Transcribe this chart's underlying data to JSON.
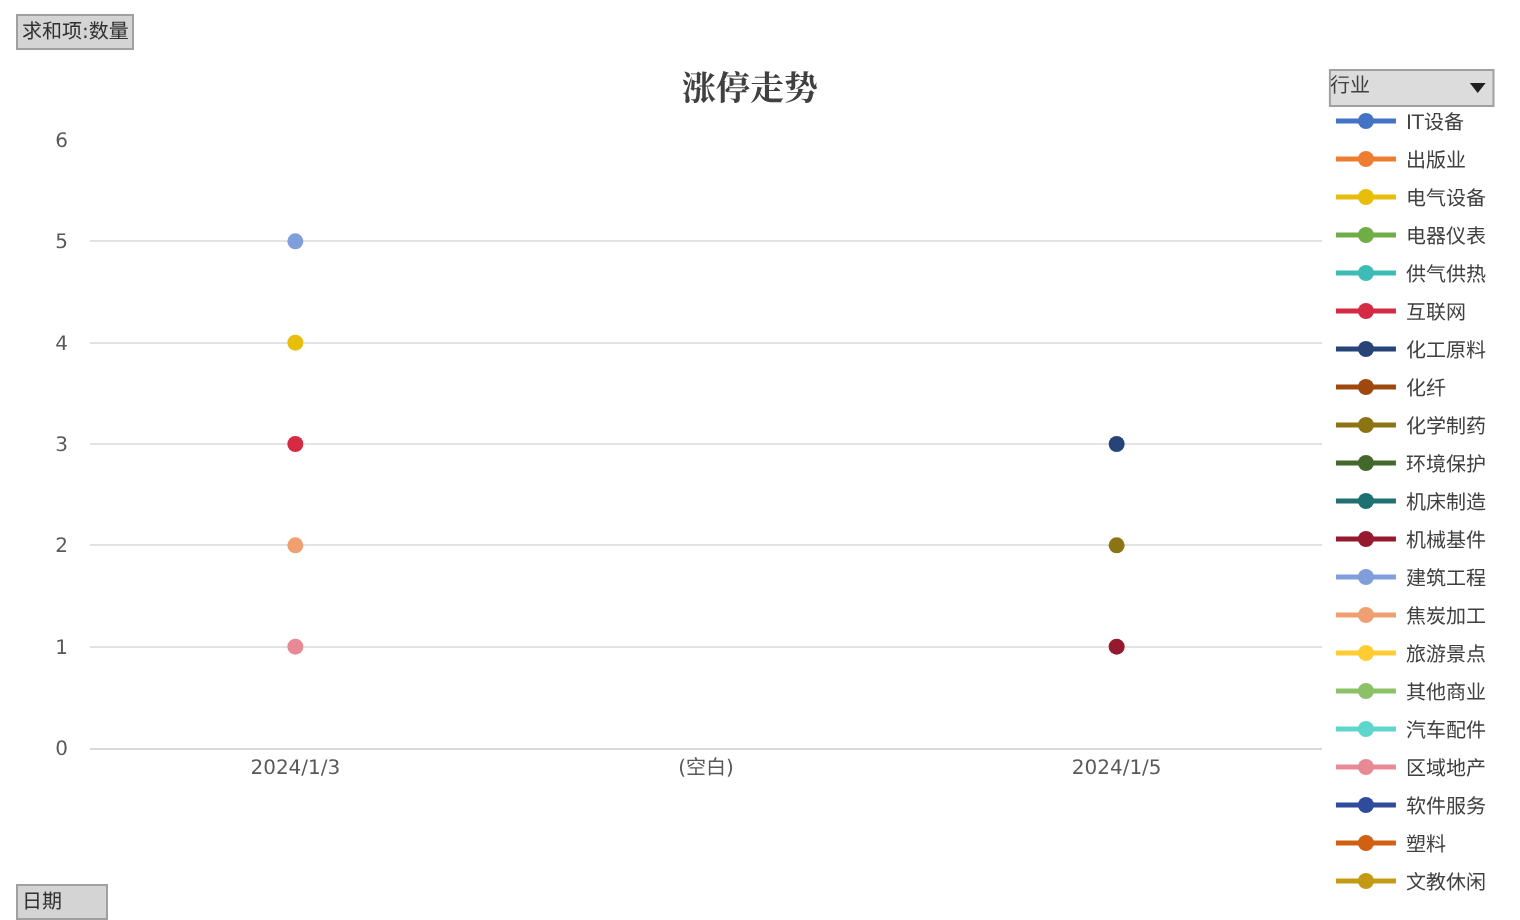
{
  "chart_data": {
    "type": "line",
    "title": "涨停走势",
    "legend_title": "行业",
    "annotations": [
      "求和项:数量",
      "日期"
    ],
    "categories": [
      "2024/1/3",
      "(空白)",
      "2024/1/5"
    ],
    "ylim": [
      0,
      6
    ],
    "yticks": [
      0,
      1,
      2,
      3,
      4,
      5,
      6
    ],
    "grid": "y",
    "legend": "right",
    "marker": "circle",
    "line_style": "solid",
    "series": [
      {
        "name": "IT设备",
        "color": "#4472c4",
        "values": [
          null,
          null,
          null
        ]
      },
      {
        "name": "出版业",
        "color": "#ed7d31",
        "values": [
          null,
          null,
          null
        ]
      },
      {
        "name": "电气设备",
        "color": "#e8be0a",
        "values": [
          4,
          null,
          null
        ]
      },
      {
        "name": "电器仪表",
        "color": "#70ad47",
        "values": [
          null,
          null,
          null
        ]
      },
      {
        "name": "供气供热",
        "color": "#3cbcb4",
        "values": [
          null,
          null,
          null
        ]
      },
      {
        "name": "互联网",
        "color": "#d42a44",
        "values": [
          3,
          null,
          null
        ]
      },
      {
        "name": "化工原料",
        "color": "#264478",
        "values": [
          null,
          null,
          3
        ]
      },
      {
        "name": "化纤",
        "color": "#9e480e",
        "values": [
          null,
          null,
          null
        ]
      },
      {
        "name": "化学制药",
        "color": "#8c7414",
        "values": [
          null,
          null,
          2
        ]
      },
      {
        "name": "环境保护",
        "color": "#43682b",
        "values": [
          null,
          null,
          null
        ]
      },
      {
        "name": "机床制造",
        "color": "#1f7070",
        "values": [
          null,
          null,
          null
        ]
      },
      {
        "name": "机械基件",
        "color": "#961a2e",
        "values": [
          null,
          null,
          1
        ]
      },
      {
        "name": "建筑工程",
        "color": "#809ddc",
        "values": [
          5,
          null,
          null
        ]
      },
      {
        "name": "焦炭加工",
        "color": "#f0a070",
        "values": [
          2,
          null,
          null
        ]
      },
      {
        "name": "旅游景点",
        "color": "#ffcd33",
        "values": [
          null,
          null,
          null
        ]
      },
      {
        "name": "其他商业",
        "color": "#8cc168",
        "values": [
          null,
          null,
          null
        ]
      },
      {
        "name": "汽车配件",
        "color": "#5fd6cc",
        "values": [
          null,
          null,
          null
        ]
      },
      {
        "name": "区域地产",
        "color": "#e88a96",
        "values": [
          1,
          null,
          null
        ]
      },
      {
        "name": "软件服务",
        "color": "#2f4b9c",
        "values": [
          null,
          null,
          null
        ]
      },
      {
        "name": "塑料",
        "color": "#d26012",
        "values": [
          null,
          null,
          null
        ]
      },
      {
        "name": "文教休闲",
        "color": "#c49a14",
        "values": [
          null,
          null,
          null
        ]
      }
    ]
  }
}
